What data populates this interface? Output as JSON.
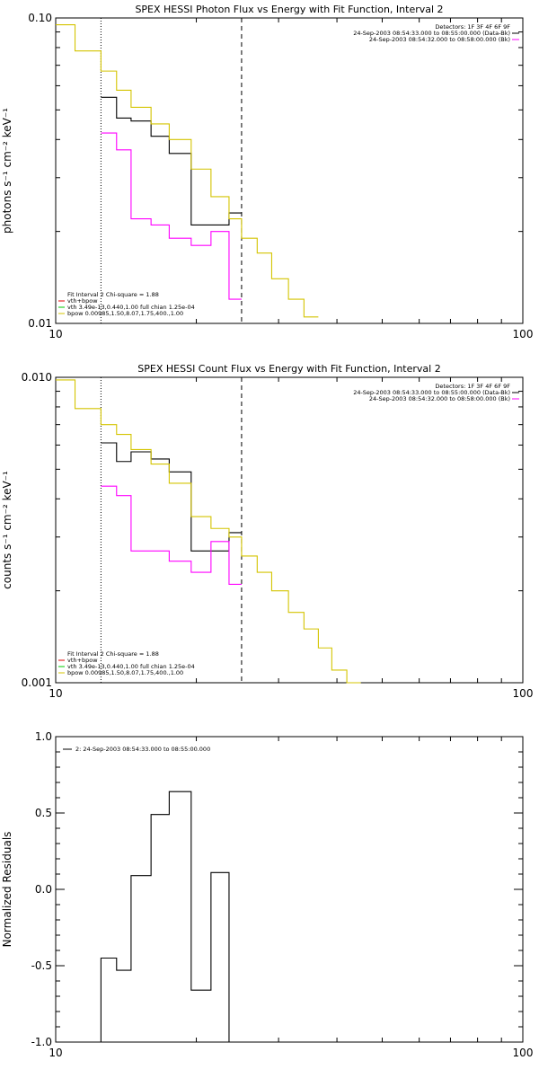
{
  "colors": {
    "data": "#000000",
    "bk": "#ff00ff",
    "model": "#d4c400",
    "vth_bpow": "#e00000",
    "vth": "#00cc00",
    "bpow": "#d4c400",
    "line": "#000000"
  },
  "chart_data": [
    {
      "type": "line",
      "step": true,
      "title": "SPEX HESSI Photon Flux vs Energy with Fit Function, Interval 2",
      "ylabel": "photons s⁻¹ cm⁻² keV⁻¹",
      "xlabel": "",
      "xscale": "log",
      "yscale": "log",
      "xlim": [
        10,
        100
      ],
      "ylim": [
        0.01,
        0.1
      ],
      "x_ticks": [
        "10",
        "100"
      ],
      "y_ticks": [
        {
          "v": 0.01,
          "label": "0.01"
        },
        {
          "v": 0.1,
          "label": "0.10"
        }
      ],
      "vlines": [
        {
          "x": 12.5,
          "style": "dotted"
        },
        {
          "x": 25,
          "style": "dashed"
        }
      ],
      "legend_top_right": [
        {
          "text": "Detectors: 1F 3F 4F 6F 9F",
          "color": ""
        },
        {
          "text": "24-Sep-2003 08:54:33.000 to 08:55:00.000 (Data-Bk)",
          "color": "#000000"
        },
        {
          "text": "24-Sep-2003 08:54:32.000 to 08:58:00.000 (Bk)",
          "color": "#ff00ff"
        }
      ],
      "legend_bottom_left": [
        {
          "text": "Fit Interval 2   Chi-square = 1.88",
          "color": ""
        },
        {
          "text": "vth+bpow",
          "color": "#e00000"
        },
        {
          "text": "vth 3.49e-13,0.440,1.00  full chian 1.25e-04",
          "color": "#00cc00"
        },
        {
          "text": "bpow 0.00985,1.50,8.07,1.75,400.,1.00",
          "color": "#d4c400"
        }
      ],
      "series": [
        {
          "key": "data",
          "edges": [
            12.5,
            13.5,
            14.5,
            16,
            17.5,
            19.5,
            21.5,
            23.5,
            25
          ],
          "values": [
            0.055,
            0.047,
            0.046,
            0.041,
            0.036,
            0.021,
            0.021,
            0.023
          ]
        },
        {
          "key": "bk",
          "edges": [
            12.5,
            13.5,
            14.5,
            16,
            17.5,
            19.5,
            21.5,
            23.5,
            25
          ],
          "values": [
            0.042,
            0.037,
            0.022,
            0.021,
            0.019,
            0.018,
            0.02,
            0.012
          ]
        },
        {
          "key": "model",
          "edges": [
            10,
            11,
            12.5,
            13.5,
            14.5,
            16,
            17.5,
            19.5,
            21.5,
            23.5,
            25,
            27,
            29,
            31.5,
            34,
            36.5
          ],
          "values": [
            0.095,
            0.078,
            0.067,
            0.058,
            0.051,
            0.045,
            0.04,
            0.032,
            0.026,
            0.022,
            0.019,
            0.017,
            0.014,
            0.012,
            0.0105
          ]
        }
      ]
    },
    {
      "type": "line",
      "step": true,
      "title": "SPEX HESSI Count Flux vs Energy with Fit Function, Interval 2",
      "ylabel": "counts s⁻¹ cm⁻² keV⁻¹",
      "xlabel": "",
      "xscale": "log",
      "yscale": "log",
      "xlim": [
        10,
        100
      ],
      "ylim": [
        0.001,
        0.01
      ],
      "x_ticks": [
        "10",
        "100"
      ],
      "y_ticks": [
        {
          "v": 0.001,
          "label": "0.001"
        },
        {
          "v": 0.01,
          "label": "0.010"
        }
      ],
      "vlines": [
        {
          "x": 12.5,
          "style": "dotted"
        },
        {
          "x": 25,
          "style": "dashed"
        }
      ],
      "legend_top_right": [
        {
          "text": "Detectors: 1F 3F 4F 6F 9F",
          "color": ""
        },
        {
          "text": "24-Sep-2003 08:54:33.000 to 08:55:00.000 (Data-Bk)",
          "color": "#000000"
        },
        {
          "text": "24-Sep-2003 08:54:32.000 to 08:58:00.000 (Bk)",
          "color": "#ff00ff"
        }
      ],
      "legend_bottom_left": [
        {
          "text": "Fit Interval 2   Chi-square = 1.88",
          "color": ""
        },
        {
          "text": "vth+bpow",
          "color": "#e00000"
        },
        {
          "text": "vth 3.49e-13,0.440,1.00  full chian 1.25e-04",
          "color": "#00cc00"
        },
        {
          "text": "bpow 0.00985,1.50,8.07,1.75,400.,1.00",
          "color": "#d4c400"
        }
      ],
      "series": [
        {
          "key": "data",
          "edges": [
            12.5,
            13.5,
            14.5,
            16,
            17.5,
            19.5,
            21.5,
            23.5,
            25
          ],
          "values": [
            0.0061,
            0.0053,
            0.0057,
            0.0054,
            0.0049,
            0.0027,
            0.0027,
            0.0031
          ]
        },
        {
          "key": "bk",
          "edges": [
            12.5,
            13.5,
            14.5,
            16,
            17.5,
            19.5,
            21.5,
            23.5,
            25
          ],
          "values": [
            0.0044,
            0.0041,
            0.0027,
            0.0027,
            0.0025,
            0.0023,
            0.0029,
            0.0021
          ]
        },
        {
          "key": "model",
          "edges": [
            10,
            11,
            12.5,
            13.5,
            14.5,
            16,
            17.5,
            19.5,
            21.5,
            23.5,
            25,
            27,
            29,
            31.5,
            34,
            36.5,
            39,
            42,
            45
          ],
          "values": [
            0.0098,
            0.0079,
            0.007,
            0.0065,
            0.0058,
            0.0052,
            0.0045,
            0.0035,
            0.0032,
            0.003,
            0.0026,
            0.0023,
            0.002,
            0.0017,
            0.0015,
            0.0013,
            0.0011,
            0.001
          ]
        }
      ]
    },
    {
      "type": "line",
      "step": true,
      "title": "",
      "ylabel": "Normalized Residuals",
      "xlabel": "",
      "xscale": "log",
      "yscale": "linear",
      "xlim": [
        10,
        100
      ],
      "ylim": [
        -1.0,
        1.0
      ],
      "x_ticks": [
        "10",
        "100"
      ],
      "y_ticks": [
        {
          "v": -1.0,
          "label": "-1.0"
        },
        {
          "v": -0.5,
          "label": "-0.5"
        },
        {
          "v": 0.0,
          "label": "0.0"
        },
        {
          "v": 0.5,
          "label": "0.5"
        },
        {
          "v": 1.0,
          "label": "1.0"
        }
      ],
      "vlines": [],
      "legend_top_right": [],
      "legend_bottom_left": [],
      "legend_top_left": [
        {
          "text": "2: 24-Sep-2003 08:54:33.000 to 08:55:00.000",
          "color": "#000000"
        }
      ],
      "series": [
        {
          "key": "line",
          "edges": [
            12.5,
            13.5,
            14.5,
            16,
            17.5,
            19.5,
            21.5,
            23.5,
            25
          ],
          "values": [
            -0.45,
            -0.53,
            0.09,
            0.49,
            0.64,
            -0.66,
            0.11,
            -1.0
          ],
          "start": -1.0,
          "end": -1.0
        }
      ]
    }
  ]
}
